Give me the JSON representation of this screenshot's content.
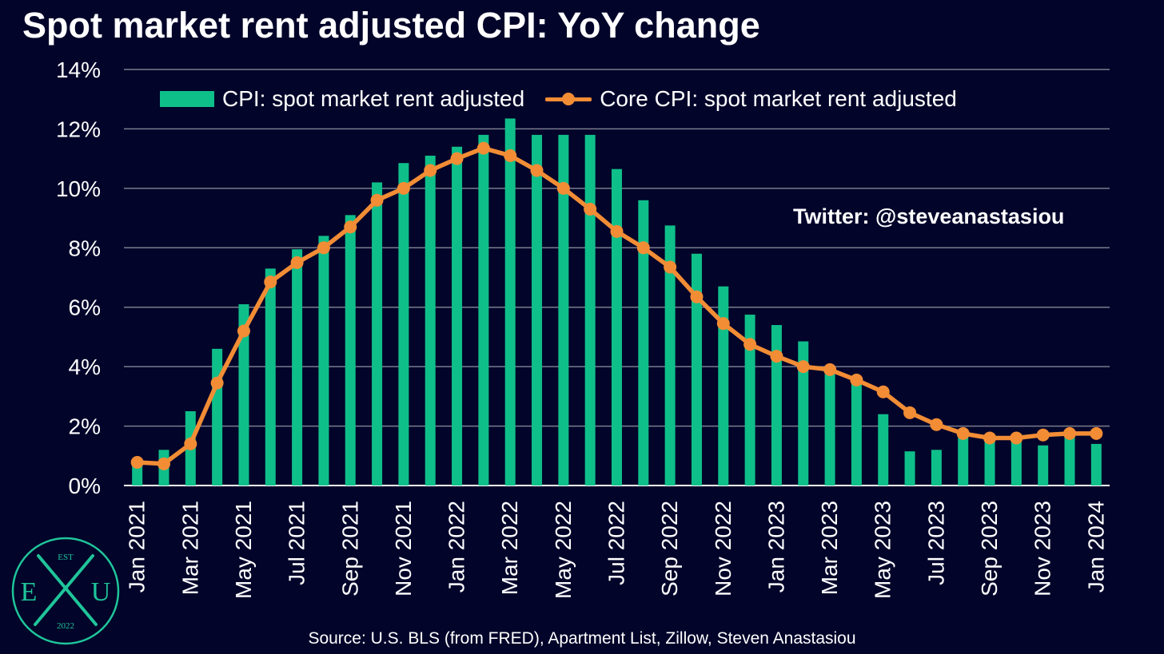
{
  "page": {
    "title": "Spot market rent adjusted CPI: YoY change",
    "handle": "Twitter: @steveanastasiou",
    "source": "Source: U.S. BLS (from FRED), Apartment List, Zillow, Steven Anastasiou",
    "logo": {
      "top": "EST",
      "left": "E",
      "right": "U",
      "bottom": "2022"
    }
  },
  "colors": {
    "background": "#02042a",
    "bar": "#0fbf8a",
    "line": "#f28d35",
    "grid": "#7a7c8e",
    "text": "#ffffff",
    "logo": "#1fc59a"
  },
  "chart_data": {
    "type": "bar",
    "title": "Spot market rent adjusted CPI: YoY change",
    "xlabel": "",
    "ylabel": "",
    "ylim": [
      0,
      14
    ],
    "yticks": [
      "0%",
      "2%",
      "4%",
      "6%",
      "8%",
      "10%",
      "12%",
      "14%"
    ],
    "grid": true,
    "legend": "top",
    "categories": [
      "Jan 2021",
      "Feb 2021",
      "Mar 2021",
      "Apr 2021",
      "May 2021",
      "Jun 2021",
      "Jul 2021",
      "Aug 2021",
      "Sep 2021",
      "Oct 2021",
      "Nov 2021",
      "Dec 2021",
      "Jan 2022",
      "Feb 2022",
      "Mar 2022",
      "Apr 2022",
      "May 2022",
      "Jun 2022",
      "Jul 2022",
      "Aug 2022",
      "Sep 2022",
      "Oct 2022",
      "Nov 2022",
      "Dec 2022",
      "Jan 2023",
      "Feb 2023",
      "Mar 2023",
      "Apr 2023",
      "May 2023",
      "Jun 2023",
      "Jul 2023",
      "Aug 2023",
      "Sep 2023",
      "Oct 2023",
      "Nov 2023",
      "Dec 2023",
      "Jan 2024"
    ],
    "xtick_labels": [
      "Jan 2021",
      "",
      "Mar 2021",
      "",
      "May 2021",
      "",
      "Jul 2021",
      "",
      "Sep 2021",
      "",
      "Nov 2021",
      "",
      "Jan 2022",
      "",
      "Mar 2022",
      "",
      "May 2022",
      "",
      "Jul 2022",
      "",
      "Sep 2022",
      "",
      "Nov 2022",
      "",
      "Jan 2023",
      "",
      "Mar 2023",
      "",
      "May 2023",
      "",
      "Jul 2023",
      "",
      "Sep 2023",
      "",
      "Nov 2023",
      "",
      "Jan 2024"
    ],
    "series": [
      {
        "name": "CPI: spot market rent adjusted",
        "type": "bar",
        "values": [
          0.75,
          1.2,
          2.5,
          4.6,
          6.1,
          7.3,
          7.95,
          8.4,
          9.1,
          10.2,
          10.85,
          11.1,
          11.4,
          11.8,
          12.35,
          11.8,
          11.8,
          11.8,
          10.65,
          9.6,
          8.75,
          7.8,
          6.7,
          5.75,
          5.4,
          4.85,
          3.75,
          3.55,
          2.4,
          1.15,
          1.2,
          1.85,
          1.6,
          1.6,
          1.35,
          1.75,
          1.4
        ]
      },
      {
        "name": "Core CPI: spot market rent adjusted",
        "type": "line",
        "values": [
          0.78,
          0.73,
          1.4,
          3.45,
          5.2,
          6.85,
          7.5,
          8.0,
          8.7,
          9.6,
          10.0,
          10.6,
          11.0,
          11.35,
          11.1,
          10.6,
          10.0,
          9.3,
          8.55,
          8.0,
          7.35,
          6.35,
          5.45,
          4.75,
          4.35,
          4.0,
          3.9,
          3.55,
          3.15,
          2.45,
          2.05,
          1.75,
          1.6,
          1.6,
          1.7,
          1.75,
          1.75
        ]
      }
    ]
  }
}
